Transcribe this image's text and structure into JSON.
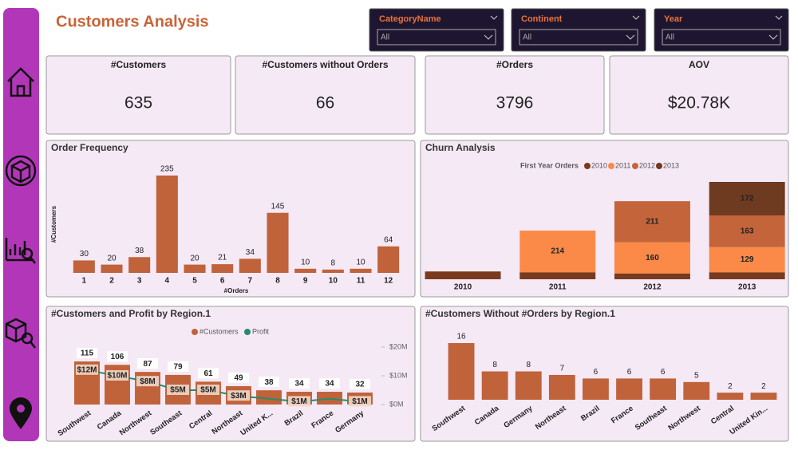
{
  "header": {
    "title": "Customers Analysis"
  },
  "filters": [
    {
      "label": "CategoryName",
      "value": "All"
    },
    {
      "label": "Continent",
      "value": "All"
    },
    {
      "label": "Year",
      "value": "All"
    }
  ],
  "kpis": [
    {
      "label": "#Customers",
      "value": "635"
    },
    {
      "label": "#Customers without Orders",
      "value": "66"
    },
    {
      "label": "#Orders",
      "value": "3796"
    },
    {
      "label": "AOV",
      "value": "$20.78K"
    }
  ],
  "chart_data": [
    {
      "type": "bar",
      "title": "Order Frequency",
      "x_label": "#Orders",
      "y_label": "#Customers",
      "categories": [
        1,
        2,
        3,
        4,
        5,
        6,
        7,
        8,
        9,
        10,
        11,
        12
      ],
      "values": [
        30,
        20,
        38,
        235,
        20,
        21,
        34,
        145,
        10,
        8,
        10,
        64
      ],
      "color": "#c0623a"
    },
    {
      "type": "stacked_bar",
      "title": "Churn Analysis",
      "legend_title": "First Year Orders",
      "categories": [
        2010,
        2011,
        2012,
        2013
      ],
      "series": [
        {
          "name": "2010",
          "color": "#7a3a1e",
          "values": [
            40,
            36,
            30,
            36
          ]
        },
        {
          "name": "2011",
          "color": "#fb8a48",
          "values": [
            null,
            214,
            160,
            129
          ]
        },
        {
          "name": "2012",
          "color": "#c4643a",
          "values": [
            null,
            null,
            211,
            163
          ]
        },
        {
          "name": "2013",
          "color": "#6e3a20",
          "values": [
            null,
            null,
            null,
            172
          ]
        }
      ]
    },
    {
      "type": "bar_line",
      "title": "#Customers and Profit by Region.1",
      "categories": [
        "Southwest",
        "Canada",
        "Northwest",
        "Southeast",
        "Central",
        "Northeast",
        "United K...",
        "Brazil",
        "France",
        "Germany"
      ],
      "series": [
        {
          "name": "#Customers",
          "color": "#c0623a",
          "values": [
            115,
            106,
            87,
            79,
            61,
            49,
            38,
            34,
            34,
            32
          ]
        },
        {
          "name": "Profit",
          "color": "#2a8a6a",
          "axis": "y2",
          "values": [
            12000000,
            10000000,
            8000000,
            5000000,
            5000000,
            3000000,
            2000000,
            1000000,
            2000000,
            1000000
          ],
          "value_labels": [
            "$12M",
            "$10M",
            "$8M",
            "$5M",
            "$5M",
            "$3M",
            null,
            "$1M",
            null,
            "$1M"
          ]
        }
      ],
      "y2lim": [
        0,
        20000000
      ],
      "y2ticks": [
        {
          "value": 0,
          "label": "$0M"
        },
        {
          "value": 10000000,
          "label": "$10M"
        },
        {
          "value": 20000000,
          "label": "$20M"
        }
      ]
    },
    {
      "type": "bar",
      "title": "#Customers Without #Orders by Region.1",
      "categories": [
        "Southwest",
        "Canada",
        "Germany",
        "Northeast",
        "Brazil",
        "France",
        "Southeast",
        "Northwest",
        "Central",
        "United Kin..."
      ],
      "values": [
        16,
        8,
        8,
        7,
        6,
        6,
        6,
        5,
        2,
        2
      ],
      "color": "#c0623a"
    }
  ]
}
